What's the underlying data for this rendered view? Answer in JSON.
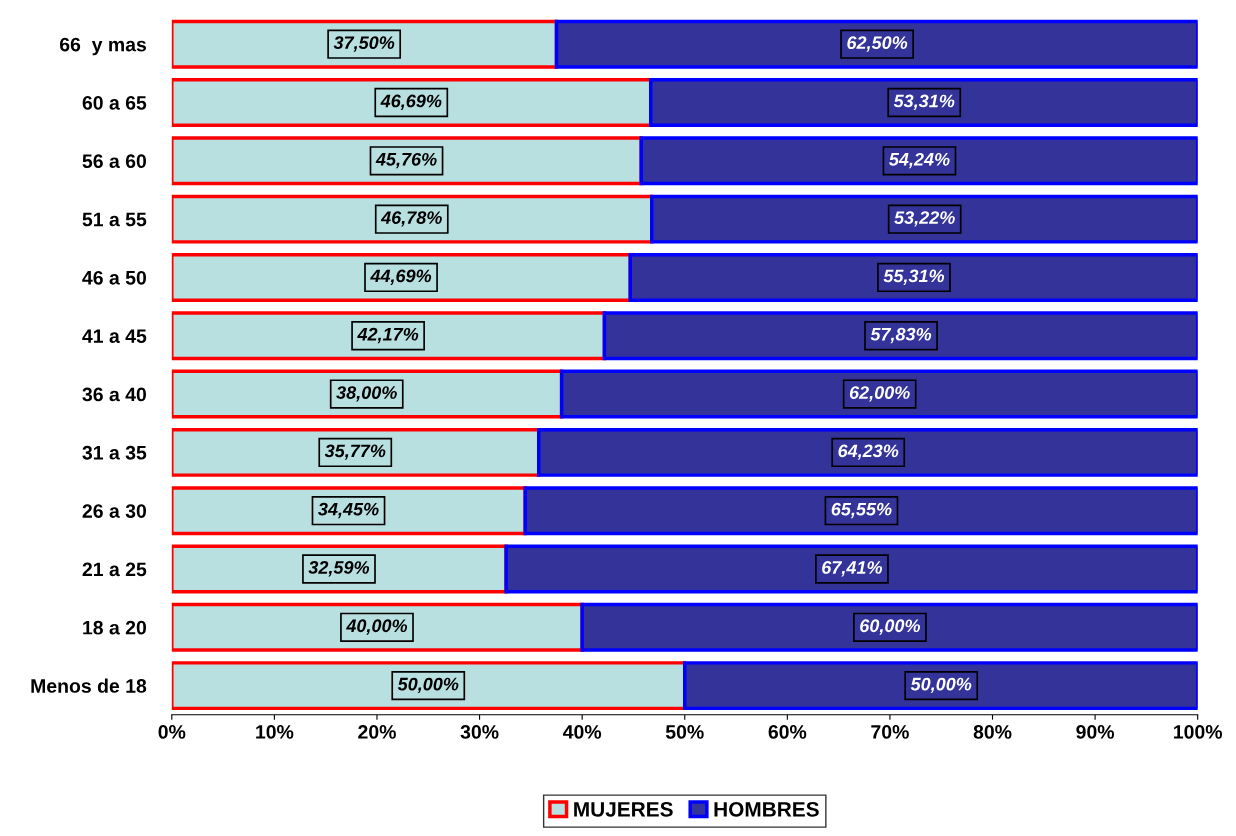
{
  "chart_data": {
    "type": "bar",
    "orientation": "horizontal",
    "stacked": true,
    "categories": [
      "66  y mas",
      "60 a 65",
      "56 a 60",
      "51 a 55",
      "46 a 50",
      "41 a 45",
      "36 a 40",
      "31 a 35",
      "26 a 30",
      "21 a 25",
      "18 a 20",
      "Menos de 18"
    ],
    "series": [
      {
        "name": "MUJERES",
        "color": "#b8e0e0",
        "values": [
          37.5,
          46.69,
          45.76,
          46.78,
          44.69,
          42.17,
          38.0,
          35.77,
          34.45,
          32.59,
          40.0,
          50.0
        ],
        "value_labels": [
          "37,50%",
          "46,69%",
          "45,76%",
          "46,78%",
          "44,69%",
          "42,17%",
          "38,00%",
          "35,77%",
          "34,45%",
          "32,59%",
          "40,00%",
          "50,00%"
        ]
      },
      {
        "name": "HOMBRES",
        "color": "#333399",
        "values": [
          62.5,
          53.31,
          54.24,
          53.22,
          55.31,
          57.83,
          62.0,
          64.23,
          65.55,
          67.41,
          60.0,
          50.0
        ],
        "value_labels": [
          "62,50%",
          "53,31%",
          "54,24%",
          "53,22%",
          "55,31%",
          "57,83%",
          "62,00%",
          "64,23%",
          "65,55%",
          "67,41%",
          "60,00%",
          "50,00%"
        ]
      }
    ],
    "xlim": [
      0,
      100
    ],
    "xticks": [
      {
        "value": 0,
        "label": "0%"
      },
      {
        "value": 10,
        "label": "10%"
      },
      {
        "value": 20,
        "label": "20%"
      },
      {
        "value": 30,
        "label": "30%"
      },
      {
        "value": 40,
        "label": "40%"
      },
      {
        "value": 50,
        "label": "50%"
      },
      {
        "value": 60,
        "label": "60%"
      },
      {
        "value": 70,
        "label": "70%"
      },
      {
        "value": 80,
        "label": "80%"
      },
      {
        "value": 90,
        "label": "90%"
      },
      {
        "value": 100,
        "label": "100%"
      }
    ],
    "grid": false,
    "legend": "bottom"
  }
}
